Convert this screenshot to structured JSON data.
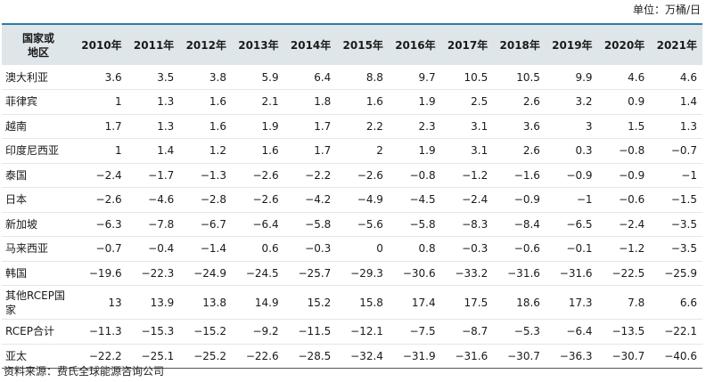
{
  "unit_label": "单位：万桶/日",
  "table": {
    "header_name": "国家或地区",
    "years": [
      "2010年",
      "2011年",
      "2012年",
      "2013年",
      "2014年",
      "2015年",
      "2016年",
      "2017年",
      "2018年",
      "2019年",
      "2020年",
      "2021年"
    ],
    "rows": [
      {
        "name": "澳大利亚",
        "values": [
          "3.6",
          "3.5",
          "3.8",
          "5.9",
          "6.4",
          "8.8",
          "9.7",
          "10.5",
          "10.5",
          "9.9",
          "4.6",
          "4.6"
        ]
      },
      {
        "name": "菲律宾",
        "values": [
          "1",
          "1.3",
          "1.6",
          "2.1",
          "1.8",
          "1.6",
          "1.9",
          "2.5",
          "2.6",
          "3.2",
          "0.9",
          "1.4"
        ]
      },
      {
        "name": "越南",
        "values": [
          "1.7",
          "1.3",
          "1.6",
          "1.9",
          "1.7",
          "2.2",
          "2.3",
          "3.1",
          "3.6",
          "3",
          "1.5",
          "1.3"
        ]
      },
      {
        "name": "印度尼西亚",
        "values": [
          "1",
          "1.4",
          "1.2",
          "1.6",
          "1.7",
          "2",
          "1.9",
          "3.1",
          "2.6",
          "0.3",
          "−0.8",
          "−0.7"
        ]
      },
      {
        "name": "泰国",
        "values": [
          "−2.4",
          "−1.7",
          "−1.3",
          "−2.6",
          "−2.2",
          "−2.6",
          "−0.8",
          "−1.2",
          "−1.6",
          "−0.9",
          "−0.9",
          "−1"
        ]
      },
      {
        "name": "日本",
        "values": [
          "−2.6",
          "−4.6",
          "−2.8",
          "−2.6",
          "−4.2",
          "−4.9",
          "−4.5",
          "−2.4",
          "−0.9",
          "−1",
          "−0.6",
          "−1.5"
        ]
      },
      {
        "name": "新加坡",
        "values": [
          "−6.3",
          "−7.8",
          "−6.7",
          "−6.4",
          "−5.8",
          "−5.6",
          "−5.8",
          "−8.3",
          "−8.4",
          "−6.5",
          "−2.4",
          "−3.5"
        ]
      },
      {
        "name": "马来西亚",
        "values": [
          "−0.7",
          "−0.4",
          "−1.4",
          "0.6",
          "−0.3",
          "0",
          "0.8",
          "−0.3",
          "−0.6",
          "−0.1",
          "−1.2",
          "−3.5"
        ]
      },
      {
        "name": "韩国",
        "values": [
          "−19.6",
          "−22.3",
          "−24.9",
          "−24.5",
          "−25.7",
          "−29.3",
          "−30.6",
          "−33.2",
          "−31.6",
          "−31.6",
          "−22.5",
          "−25.9"
        ]
      },
      {
        "name": "其他RCEP国家",
        "values": [
          "13",
          "13.9",
          "13.8",
          "14.9",
          "15.2",
          "15.8",
          "17.4",
          "17.5",
          "18.6",
          "17.3",
          "7.8",
          "6.6"
        ]
      },
      {
        "name": "RCEP合计",
        "values": [
          "−11.3",
          "−15.3",
          "−15.2",
          "−9.2",
          "−11.5",
          "−12.1",
          "−7.5",
          "−8.7",
          "−5.3",
          "−6.4",
          "−13.5",
          "−22.1"
        ]
      },
      {
        "name": "亚太",
        "values": [
          "−22.2",
          "−25.1",
          "−25.2",
          "−22.6",
          "−28.5",
          "−32.4",
          "−31.9",
          "−31.6",
          "−30.7",
          "−36.3",
          "−30.7",
          "−40.6"
        ]
      }
    ]
  },
  "source": "资料来源：费氏全球能源咨询公司",
  "colors": {
    "header_bg": "#dfe6ea",
    "top_rule": "#2b7da6"
  }
}
